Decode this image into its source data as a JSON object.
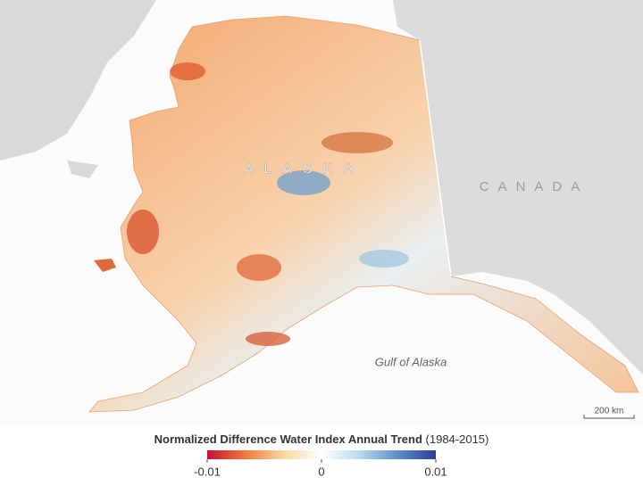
{
  "map": {
    "labels": {
      "region": "ALASKA",
      "neighbor": "CANADA",
      "water": "Gulf of Alaska"
    },
    "scale_bar": "200 km"
  },
  "legend": {
    "title": "Normalized Difference Water Index Annual Trend",
    "period": "(1984-2015)",
    "range": [
      -0.01,
      0.01
    ],
    "ticks": [
      -0.01,
      0,
      0.01
    ],
    "colors": [
      "#c8102e",
      "#f07a3a",
      "#fbd7a0",
      "#ffffff",
      "#b9dcec",
      "#5b8fc9",
      "#2b3d9a"
    ]
  }
}
